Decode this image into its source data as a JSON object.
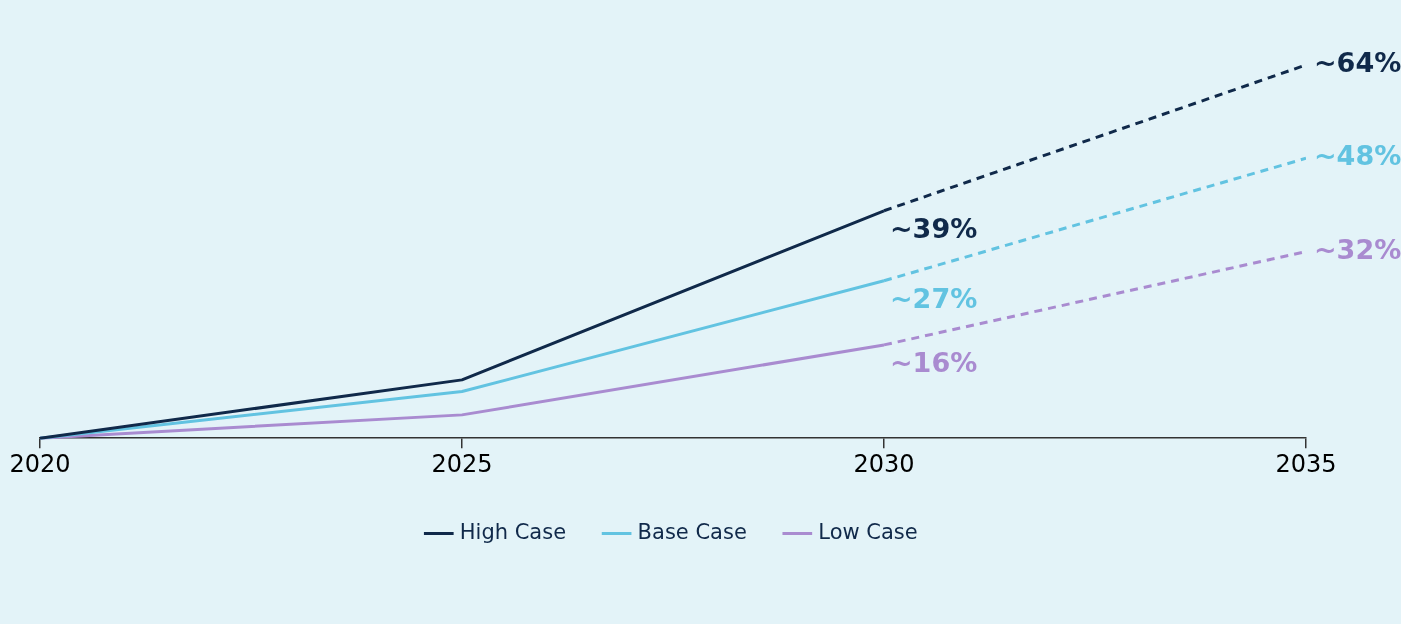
{
  "chart_data": {
    "type": "line",
    "x": [
      2020,
      2025,
      2030,
      2035
    ],
    "xlim": [
      2020,
      2035
    ],
    "xticks": [
      2020,
      2025,
      2030,
      2035
    ],
    "tick_labels": "x",
    "grid": false,
    "legend": "bottom",
    "marker": "none",
    "series": [
      {
        "name": "High Case",
        "color": "#10294a",
        "values": [
          0,
          10,
          39,
          null
        ],
        "value_labels": [
          null,
          null,
          "~39%",
          null
        ],
        "line_style": "solid"
      },
      {
        "name": "Base Case",
        "color": "#62c3e1",
        "values": [
          0,
          8,
          27,
          null
        ],
        "value_labels": [
          null,
          null,
          "~27%",
          null
        ],
        "line_style": "solid"
      },
      {
        "name": "Low Case",
        "color": "#a98bd0",
        "values": [
          0,
          4,
          16,
          null
        ],
        "value_labels": [
          null,
          null,
          "~16%",
          null
        ],
        "line_style": "solid"
      },
      {
        "color": "#10294a",
        "values": [
          null,
          null,
          39,
          64
        ],
        "value_labels": [
          null,
          null,
          null,
          "~64%"
        ],
        "line_style": "dashed"
      },
      {
        "color": "#62c3e1",
        "values": [
          null,
          null,
          27,
          48
        ],
        "value_labels": [
          null,
          null,
          null,
          "~48%"
        ],
        "line_style": "dashed"
      },
      {
        "color": "#a98bd0",
        "values": [
          null,
          null,
          16,
          32
        ],
        "value_labels": [
          null,
          null,
          null,
          "~32%"
        ],
        "line_style": "dashed"
      }
    ]
  }
}
